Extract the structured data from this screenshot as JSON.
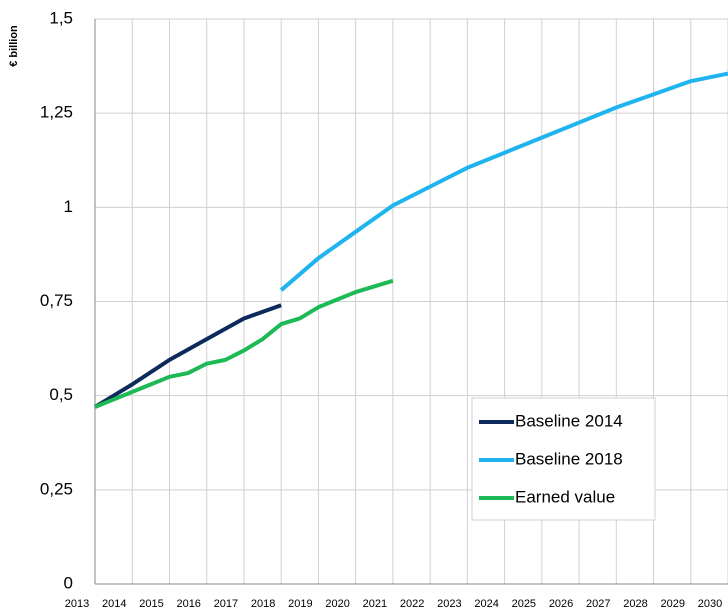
{
  "chart_data": {
    "type": "line",
    "y_label": "€ billion",
    "xlim": [
      2013,
      2030
    ],
    "xticks": [
      2013,
      2014,
      2015,
      2016,
      2017,
      2018,
      2019,
      2020,
      2021,
      2022,
      2023,
      2024,
      2025,
      2026,
      2027,
      2028,
      2029,
      2030
    ],
    "ylim": [
      0,
      1.5
    ],
    "yticks": [
      0,
      {
        "value": 0.25,
        "label": "0,25"
      },
      {
        "value": 0.5,
        "label": "0,5"
      },
      {
        "value": 0.75,
        "label": "0,75"
      },
      1,
      {
        "value": 1.25,
        "label": "1,25"
      },
      {
        "value": 1.5,
        "label": "1,5"
      }
    ],
    "grid": true,
    "legend": "lower right",
    "series": [
      {
        "name": "Baseline 2014",
        "color": "#0d2a5c",
        "x": [
          2013,
          2014,
          2015,
          2016,
          2017,
          2018
        ],
        "values": [
          0.47,
          0.53,
          0.595,
          0.65,
          0.705,
          0.74
        ]
      },
      {
        "name": "Baseline 2018",
        "color": "#1fb4ee",
        "x": [
          2018,
          2019,
          2020,
          2021,
          2022,
          2023,
          2024,
          2025,
          2026,
          2027,
          2028,
          2029,
          2030
        ],
        "values": [
          0.78,
          0.865,
          0.935,
          1.005,
          1.055,
          1.105,
          1.145,
          1.185,
          1.225,
          1.265,
          1.3,
          1.335,
          1.355
        ]
      },
      {
        "name": "Earned value",
        "color": "#1db954",
        "x": [
          2013,
          2013.5,
          2014,
          2014.5,
          2015,
          2015.5,
          2016,
          2016.5,
          2017,
          2017.5,
          2018,
          2018.5,
          2019,
          2019.5,
          2020,
          2020.5,
          2021
        ],
        "values": [
          0.47,
          0.49,
          0.51,
          0.53,
          0.55,
          0.56,
          0.585,
          0.595,
          0.62,
          0.65,
          0.69,
          0.705,
          0.735,
          0.755,
          0.775,
          0.79,
          0.805
        ]
      }
    ]
  }
}
